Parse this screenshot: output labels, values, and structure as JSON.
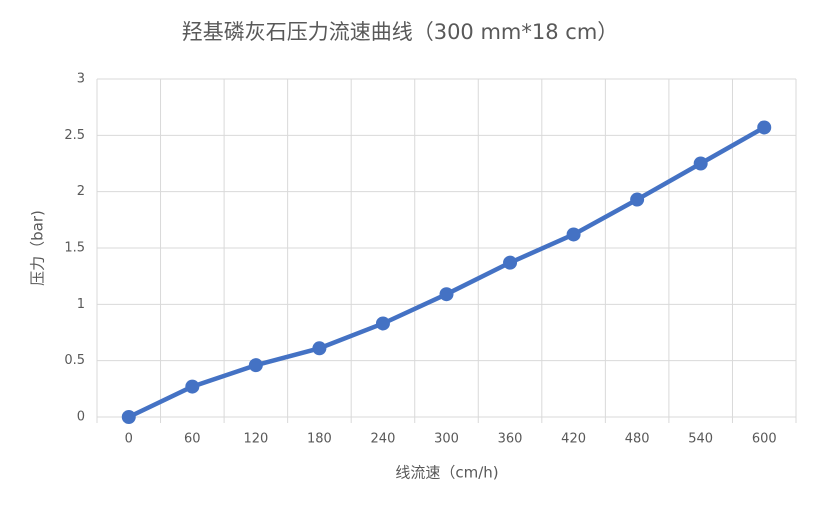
{
  "chart_data": {
    "type": "line",
    "title": "羟基磷灰石压力流速曲线（300 mm*18 cm）",
    "x_label": "线流速（cm/h)",
    "y_label": "压力（bar)",
    "categories": [
      "0",
      "60",
      "120",
      "180",
      "240",
      "300",
      "360",
      "420",
      "480",
      "540",
      "600"
    ],
    "series": [
      {
        "name": "压力",
        "color": "#4472c4",
        "values": [
          0,
          0.27,
          0.46,
          0.61,
          0.83,
          1.09,
          1.37,
          1.62,
          1.93,
          2.25,
          2.57
        ]
      }
    ],
    "ylim": [
      0,
      3
    ],
    "yticks": [
      0,
      0.5,
      1,
      1.5,
      2,
      2.5,
      3
    ],
    "grid": true
  }
}
